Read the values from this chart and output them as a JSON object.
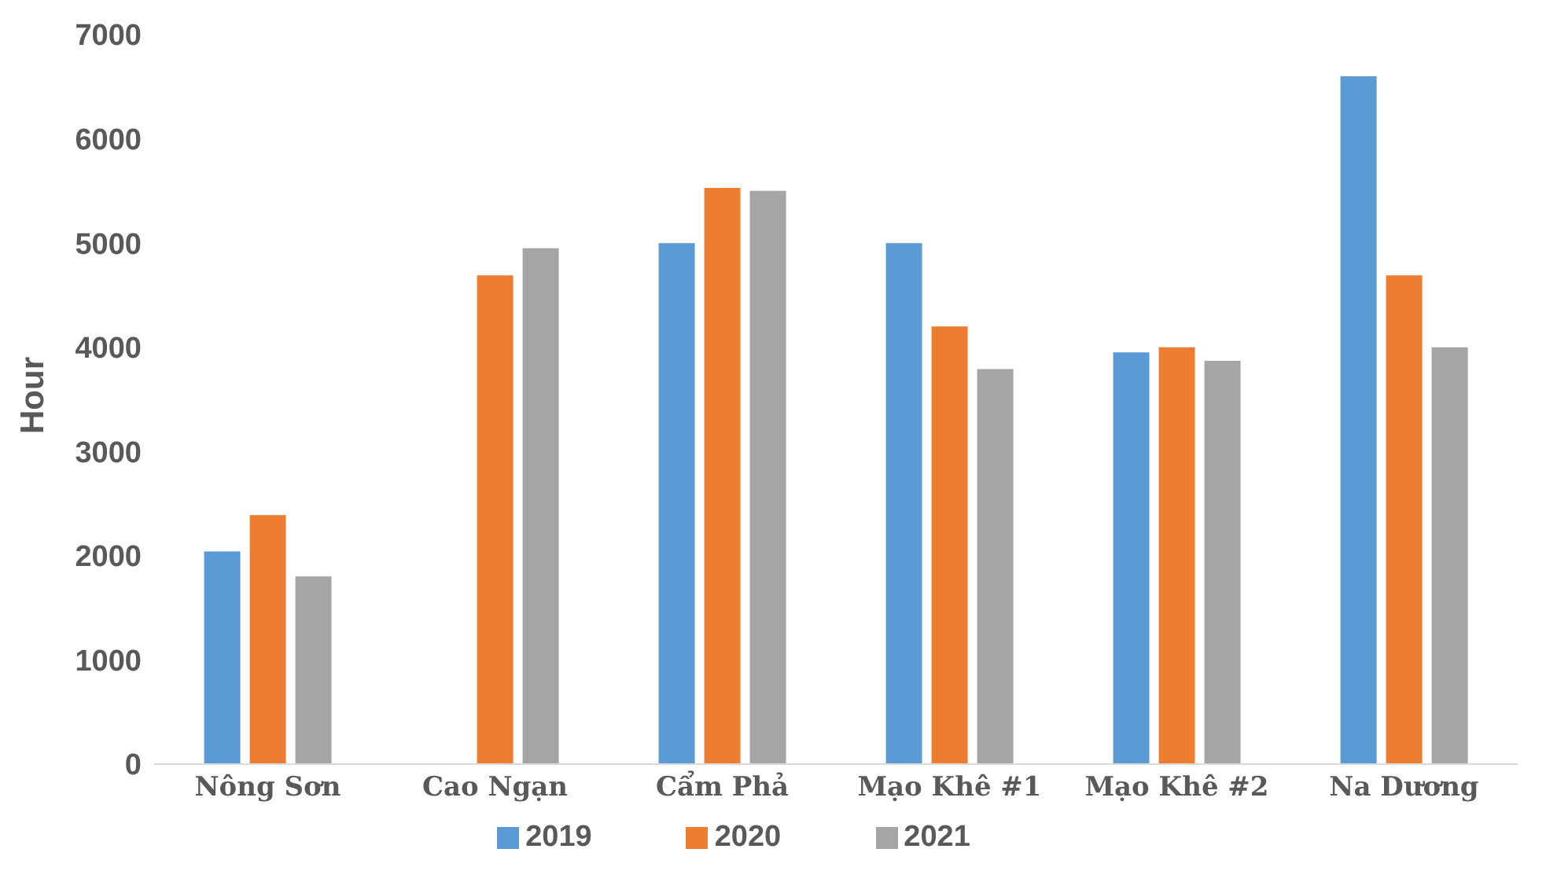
{
  "chart_data": {
    "type": "bar",
    "ylabel": "Hour",
    "categories": [
      "Nông Sơn",
      "Cao Ngạn",
      "Cẩm Phả",
      "Mạo Khê #1",
      "Mạo Khê #2",
      "Na Dương"
    ],
    "series": [
      {
        "name": "2019",
        "color": "#5b9bd5",
        "values": [
          2040,
          null,
          5000,
          5000,
          3950,
          6600
        ]
      },
      {
        "name": "2020",
        "color": "#ed7d31",
        "values": [
          2390,
          4690,
          5530,
          4200,
          4000,
          4690
        ]
      },
      {
        "name": "2021",
        "color": "#a5a5a5",
        "values": [
          1800,
          4950,
          5500,
          3790,
          3870,
          4000
        ]
      }
    ],
    "ylim": [
      0,
      7000
    ],
    "yticks": [
      0,
      1000,
      2000,
      3000,
      4000,
      5000,
      6000,
      7000
    ],
    "grid": false,
    "legend": "bottom"
  }
}
